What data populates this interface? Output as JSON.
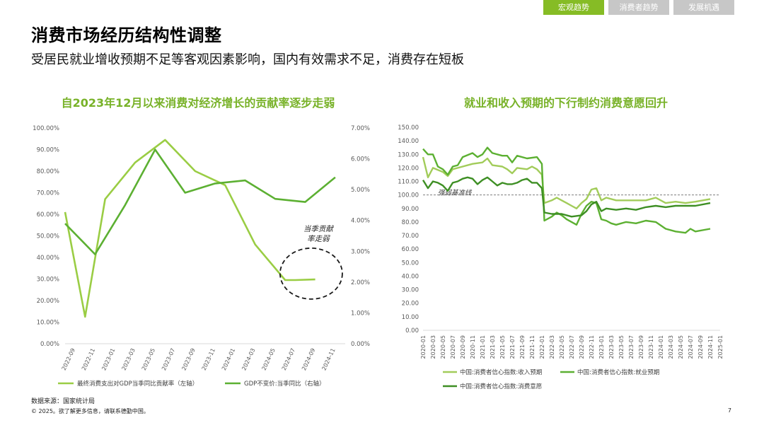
{
  "nav": {
    "tabs": [
      {
        "label": "宏观趋势",
        "active": true
      },
      {
        "label": "消费者趋势",
        "active": false
      },
      {
        "label": "发展机遇",
        "active": false
      }
    ]
  },
  "page": {
    "title": "消费市场经历结构性调整",
    "subtitle": "受居民就业增收预期不足等客观因素影响，国内有效需求不足，消费存在短板",
    "source": "数据来源：国家统计局",
    "copyright": "© 2025。欲了解更多信息，请联系德勤中国。",
    "page_number": "7"
  },
  "colors": {
    "accent": "#86bc25",
    "tab_inactive": "#c7c7c7",
    "title_green": "#78b228",
    "light_green": "#9acd44",
    "mid_green": "#5cb032",
    "dark_green": "#3e8f24"
  },
  "chart_data": [
    {
      "type": "line",
      "title": "自2023年12月以来消费对经济增长的贡献率逐步走弱",
      "x": [
        "2022-09",
        "2022-11",
        "2023-01",
        "2023-03",
        "2023-05",
        "2023-07",
        "2023-09",
        "2023-11",
        "2024-01",
        "2024-03",
        "2024-05",
        "2024-07",
        "2024-09",
        "2024-11"
      ],
      "y_left_ticks": [
        "0.00%",
        "10.00%",
        "20.00%",
        "30.00%",
        "40.00%",
        "50.00%",
        "60.00%",
        "70.00%",
        "80.00%",
        "90.00%",
        "100.00%"
      ],
      "y_right_ticks": [
        "0.00%",
        "1.00%",
        "2.00%",
        "3.00%",
        "4.00%",
        "5.00%",
        "6.00%",
        "7.00%"
      ],
      "ylim_left": [
        0,
        100
      ],
      "ylim_right": [
        0,
        7
      ],
      "annotation": [
        "当季贡献",
        "率走弱"
      ],
      "series": [
        {
          "name": "最终消费支出对GDP当季同比贡献率（左轴）",
          "axis": "left",
          "color": "#9acd44",
          "points": [
            [
              0,
              61
            ],
            [
              2,
              12.5
            ],
            [
              4,
              67
            ],
            [
              7,
              84
            ],
            [
              10,
              94.5
            ],
            [
              13,
              80
            ],
            [
              16,
              73.5
            ],
            [
              19,
              46
            ],
            [
              22,
              29.5
            ],
            [
              23,
              29.5
            ],
            [
              25,
              29.8
            ]
          ]
        },
        {
          "name": "GDP不变价:当季同比（右轴）",
          "axis": "right",
          "color": "#5cb032",
          "points": [
            [
              0,
              3.9
            ],
            [
              3,
              2.9
            ],
            [
              6,
              4.5
            ],
            [
              9,
              6.3
            ],
            [
              12,
              4.9
            ],
            [
              15,
              5.2
            ],
            [
              18,
              5.3
            ],
            [
              21,
              4.7
            ],
            [
              24,
              4.6
            ],
            [
              27,
              5.4
            ]
          ]
        }
      ]
    },
    {
      "type": "line",
      "title": "就业和收入预期的下行制约消费意愿回升",
      "x": [
        "2020-01",
        "2020-03",
        "2020-05",
        "2020-07",
        "2020-09",
        "2020-11",
        "2021-01",
        "2021-03",
        "2021-05",
        "2021-07",
        "2021-09",
        "2021-11",
        "2022-01",
        "2022-03",
        "2022-05",
        "2022-07",
        "2022-09",
        "2022-11",
        "2023-01",
        "2023-03",
        "2023-05",
        "2023-07",
        "2023-09",
        "2023-11",
        "2024-01",
        "2024-03",
        "2024-05",
        "2024-07",
        "2024-09",
        "2024-11",
        "2025-01"
      ],
      "y_ticks": [
        "0.00",
        "10.00",
        "20.00",
        "30.00",
        "40.00",
        "50.00",
        "60.00",
        "70.00",
        "80.00",
        "90.00",
        "100.00",
        "110.00",
        "120.00",
        "130.00",
        "140.00",
        "150.00"
      ],
      "ylim": [
        0,
        150
      ],
      "reference_line": {
        "value": 100,
        "label": "强弱基准线"
      },
      "series": [
        {
          "name": "中国:消费者信心指数:收入预期",
          "color": "#a2cc5a",
          "points": [
            [
              0,
              128
            ],
            [
              2,
              113
            ],
            [
              4,
              120
            ],
            [
              8,
              117
            ],
            [
              10,
              114
            ],
            [
              12,
              119
            ],
            [
              16,
              121
            ],
            [
              20,
              123
            ],
            [
              24,
              124
            ],
            [
              26,
              127
            ],
            [
              28,
              122
            ],
            [
              32,
              121
            ],
            [
              34,
              119
            ],
            [
              36,
              116
            ],
            [
              38,
              120
            ],
            [
              42,
              119
            ],
            [
              44,
              121
            ],
            [
              46,
              119
            ],
            [
              48,
              115
            ],
            [
              49,
              94
            ],
            [
              52,
              96
            ],
            [
              54,
              98
            ],
            [
              56,
              96
            ],
            [
              58,
              94
            ],
            [
              60,
              92
            ],
            [
              62,
              90
            ],
            [
              64,
              94
            ],
            [
              66,
              97
            ],
            [
              68,
              104
            ],
            [
              70,
              105
            ],
            [
              72,
              96
            ],
            [
              74,
              98
            ],
            [
              78,
              96
            ],
            [
              82,
              96
            ],
            [
              86,
              96
            ],
            [
              90,
              96
            ],
            [
              94,
              98
            ],
            [
              98,
              94
            ],
            [
              102,
              95
            ],
            [
              106,
              94
            ],
            [
              110,
              95
            ],
            [
              116,
              97
            ]
          ]
        },
        {
          "name": "中国:消费者信心指数:就业预期",
          "color": "#5cb032",
          "points": [
            [
              0,
              134
            ],
            [
              2,
              130
            ],
            [
              4,
              130
            ],
            [
              6,
              121
            ],
            [
              8,
              119
            ],
            [
              10,
              115
            ],
            [
              12,
              121
            ],
            [
              14,
              122
            ],
            [
              16,
              128
            ],
            [
              20,
              131
            ],
            [
              22,
              128
            ],
            [
              24,
              130
            ],
            [
              26,
              135
            ],
            [
              28,
              131
            ],
            [
              32,
              129
            ],
            [
              34,
              129
            ],
            [
              36,
              124
            ],
            [
              38,
              129
            ],
            [
              42,
              127
            ],
            [
              46,
              128
            ],
            [
              48,
              123
            ],
            [
              49,
              81
            ],
            [
              52,
              84
            ],
            [
              54,
              87
            ],
            [
              56,
              85
            ],
            [
              58,
              82
            ],
            [
              60,
              80
            ],
            [
              62,
              78
            ],
            [
              64,
              86
            ],
            [
              66,
              92
            ],
            [
              68,
              95
            ],
            [
              70,
              94
            ],
            [
              72,
              82
            ],
            [
              74,
              81
            ],
            [
              76,
              79
            ],
            [
              78,
              78
            ],
            [
              82,
              80
            ],
            [
              86,
              79
            ],
            [
              90,
              81
            ],
            [
              94,
              80
            ],
            [
              98,
              75
            ],
            [
              102,
              73
            ],
            [
              106,
              72
            ],
            [
              108,
              75
            ],
            [
              110,
              73
            ],
            [
              116,
              75
            ]
          ]
        },
        {
          "name": "中国:消费者信心指数:消费意愿",
          "color": "#3e8f24",
          "points": [
            [
              0,
              111
            ],
            [
              2,
              105
            ],
            [
              4,
              110
            ],
            [
              6,
              109
            ],
            [
              8,
              107
            ],
            [
              10,
              103
            ],
            [
              12,
              109
            ],
            [
              14,
              110
            ],
            [
              16,
              112
            ],
            [
              18,
              113
            ],
            [
              20,
              112
            ],
            [
              22,
              108
            ],
            [
              24,
              111
            ],
            [
              26,
              113
            ],
            [
              28,
              110
            ],
            [
              30,
              107
            ],
            [
              32,
              109
            ],
            [
              34,
              108
            ],
            [
              36,
              108
            ],
            [
              38,
              109
            ],
            [
              40,
              111
            ],
            [
              42,
              112
            ],
            [
              44,
              109
            ],
            [
              46,
              109
            ],
            [
              48,
              105
            ],
            [
              49,
              87
            ],
            [
              52,
              86
            ],
            [
              56,
              86
            ],
            [
              60,
              84
            ],
            [
              64,
              85
            ],
            [
              66,
              88
            ],
            [
              68,
              93
            ],
            [
              70,
              95
            ],
            [
              72,
              88
            ],
            [
              74,
              90
            ],
            [
              78,
              89
            ],
            [
              82,
              90
            ],
            [
              86,
              89
            ],
            [
              90,
              91
            ],
            [
              94,
              92
            ],
            [
              98,
              91
            ],
            [
              102,
              92
            ],
            [
              106,
              92
            ],
            [
              110,
              92
            ],
            [
              116,
              94
            ]
          ]
        }
      ]
    }
  ]
}
